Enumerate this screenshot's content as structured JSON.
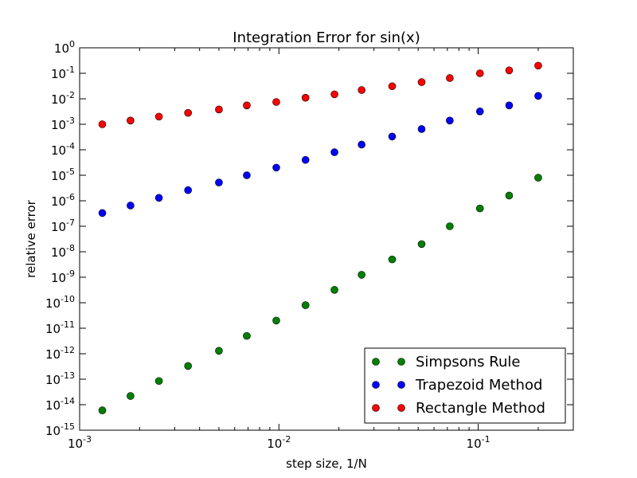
{
  "chart_data": {
    "type": "scatter",
    "title": "Integration Error for sin(x)",
    "xlabel": "step size, 1/N",
    "ylabel": "relative error",
    "xscale": "log",
    "yscale": "log",
    "xlim": [
      0.001,
      0.3
    ],
    "ylim": [
      1e-15,
      1
    ],
    "x_ticks": [
      {
        "base": "10",
        "exp": "-3",
        "value": 0.001
      },
      {
        "base": "10",
        "exp": "-2",
        "value": 0.01
      },
      {
        "base": "10",
        "exp": "-1",
        "value": 0.1
      }
    ],
    "y_ticks": [
      {
        "base": "10",
        "exp": "0",
        "value": 1
      },
      {
        "base": "10",
        "exp": "-1",
        "value": 0.1
      },
      {
        "base": "10",
        "exp": "-2",
        "value": 0.01
      },
      {
        "base": "10",
        "exp": "-3",
        "value": 0.001
      },
      {
        "base": "10",
        "exp": "-4",
        "value": 0.0001
      },
      {
        "base": "10",
        "exp": "-5",
        "value": 1e-05
      },
      {
        "base": "10",
        "exp": "-6",
        "value": 1e-06
      },
      {
        "base": "10",
        "exp": "-7",
        "value": 1e-07
      },
      {
        "base": "10",
        "exp": "-8",
        "value": 1e-08
      },
      {
        "base": "10",
        "exp": "-9",
        "value": 1e-09
      },
      {
        "base": "10",
        "exp": "-10",
        "value": 1e-10
      },
      {
        "base": "10",
        "exp": "-11",
        "value": 1e-11
      },
      {
        "base": "10",
        "exp": "-12",
        "value": 1e-12
      },
      {
        "base": "10",
        "exp": "-13",
        "value": 1e-13
      },
      {
        "base": "10",
        "exp": "-14",
        "value": 1e-14
      },
      {
        "base": "10",
        "exp": "-15",
        "value": 1e-15
      }
    ],
    "x": [
      0.0013,
      0.0018,
      0.0025,
      0.0035,
      0.005,
      0.0069,
      0.0097,
      0.0136,
      0.019,
      0.026,
      0.037,
      0.052,
      0.072,
      0.102,
      0.143,
      0.2
    ],
    "series": [
      {
        "name": "Simpsons Rule",
        "color": "#008000",
        "values": [
          6e-15,
          2.2e-14,
          8.5e-14,
          3.3e-13,
          1.3e-12,
          5e-12,
          2e-11,
          8e-11,
          3.2e-10,
          1.25e-09,
          5e-09,
          2e-08,
          1e-07,
          5e-07,
          1.6e-06,
          8e-06
        ]
      },
      {
        "name": "Trapezoid Method",
        "color": "#0000ff",
        "values": [
          3.3e-07,
          6.5e-07,
          1.3e-06,
          2.6e-06,
          5.2e-06,
          1e-05,
          2e-05,
          4e-05,
          8e-05,
          0.00016,
          0.00033,
          0.00065,
          0.0014,
          0.0032,
          0.0055,
          0.013
        ]
      },
      {
        "name": "Rectangle Method",
        "color": "#ff0000",
        "values": [
          0.001,
          0.0014,
          0.002,
          0.0028,
          0.0038,
          0.0055,
          0.0075,
          0.011,
          0.015,
          0.022,
          0.031,
          0.045,
          0.065,
          0.1,
          0.13,
          0.2
        ]
      }
    ],
    "grid": false,
    "legend_position": "lower-right"
  }
}
